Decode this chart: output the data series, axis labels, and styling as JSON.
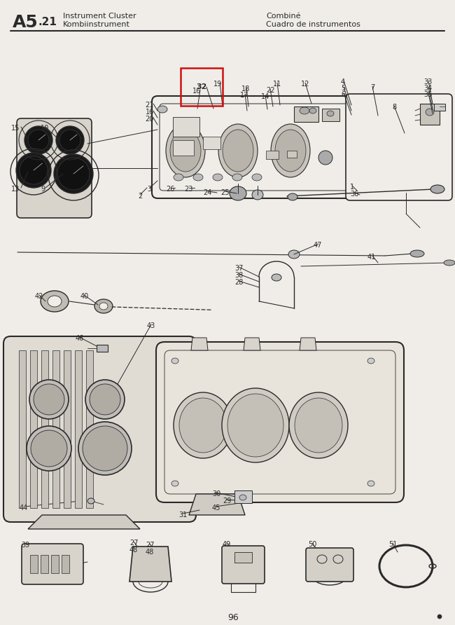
{
  "bg_color": "#f0ede8",
  "line_color": "#2a2a2a",
  "title_A5": "A5",
  "title_sub": ".21",
  "title_l1": "Instrument Cluster",
  "title_l2": "Kombiinstrument",
  "title_r1": "Combiné",
  "title_r2": "Cuadro de instrumentos",
  "page_num": "96",
  "red_box_color": "#cc1111",
  "lw_main": 1.2,
  "lw_thin": 0.6,
  "lw_thick": 1.8
}
